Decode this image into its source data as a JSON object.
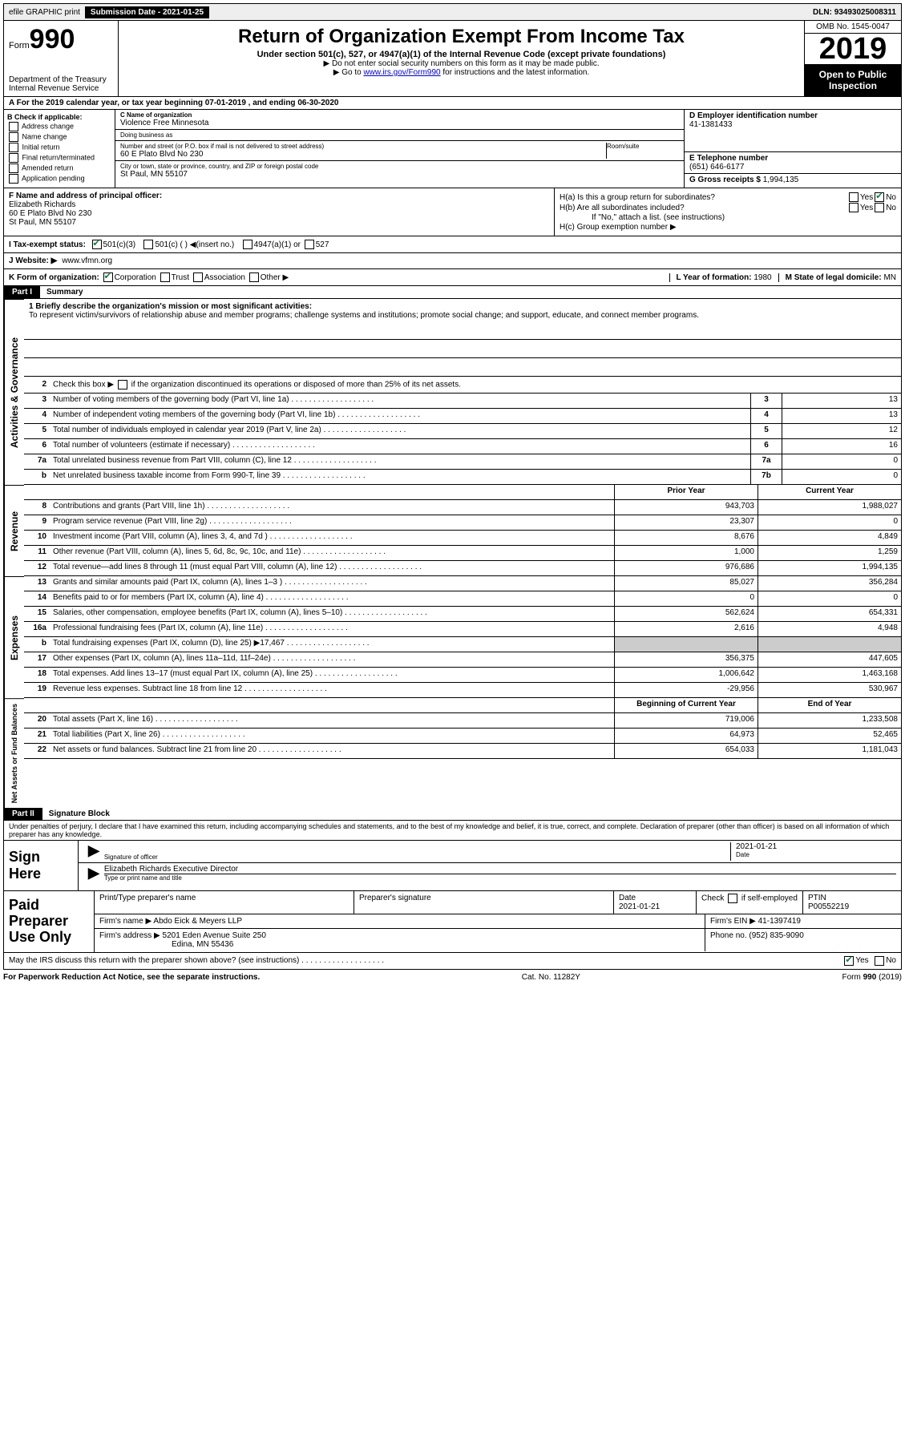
{
  "topbar": {
    "efile": "efile GRAPHIC print",
    "submission_label": "Submission Date - ",
    "submission_date": "2021-01-25",
    "dln_label": "DLN: ",
    "dln": "93493025008311"
  },
  "header": {
    "form_word": "Form",
    "form_num": "990",
    "dept1": "Department of the Treasury",
    "dept2": "Internal Revenue Service",
    "title": "Return of Organization Exempt From Income Tax",
    "sub": "Under section 501(c), 527, or 4947(a)(1) of the Internal Revenue Code (except private foundations)",
    "note1": "Do not enter social security numbers on this form as it may be made public.",
    "note2_pre": "Go to ",
    "note2_link": "www.irs.gov/Form990",
    "note2_post": " for instructions and the latest information.",
    "omb": "OMB No. 1545-0047",
    "year": "2019",
    "open": "Open to Public Inspection"
  },
  "row_a": "A   For the 2019 calendar year, or tax year beginning 07-01-2019    , and ending 06-30-2020",
  "b": {
    "label": "B Check if applicable:",
    "opts": [
      "Address change",
      "Name change",
      "Initial return",
      "Final return/terminated",
      "Amended return",
      "Application pending"
    ]
  },
  "c": {
    "name_label": "C Name of organization",
    "name": "Violence Free Minnesota",
    "dba_label": "Doing business as",
    "dba": "",
    "addr_label": "Number and street (or P.O. box if mail is not delivered to street address)",
    "room_label": "Room/suite",
    "addr": "60 E Plato Blvd No 230",
    "city_label": "City or town, state or province, country, and ZIP or foreign postal code",
    "city": "St Paul, MN  55107"
  },
  "d": {
    "label": "D Employer identification number",
    "value": "41-1381433"
  },
  "e": {
    "label": "E Telephone number",
    "value": "(651) 646-6177"
  },
  "g": {
    "label": "G Gross receipts $ ",
    "value": "1,994,135"
  },
  "f": {
    "label": "F  Name and address of principal officer:",
    "name": "Elizabeth Richards",
    "addr1": "60 E Plato Blvd No 230",
    "addr2": "St Paul, MN  55107"
  },
  "h": {
    "a_label": "H(a)  Is this a group return for subordinates?",
    "b_label": "H(b)  Are all subordinates included?",
    "b_note": "If \"No,\" attach a list. (see instructions)",
    "c_label": "H(c)  Group exemption number ▶",
    "yes": "Yes",
    "no": "No"
  },
  "tax_status": {
    "i_label": "I    Tax-exempt status:",
    "opt1": "501(c)(3)",
    "opt2": "501(c) (  ) ◀(insert no.)",
    "opt3": "4947(a)(1) or",
    "opt4": "527"
  },
  "j": {
    "label": "J    Website: ▶",
    "value": "www.vfmn.org"
  },
  "k": {
    "label": "K Form of organization:",
    "opts": [
      "Corporation",
      "Trust",
      "Association",
      "Other ▶"
    ]
  },
  "l": {
    "label": "L Year of formation: ",
    "value": "1980"
  },
  "m": {
    "label": "M State of legal domicile: ",
    "value": "MN"
  },
  "part1": {
    "part": "Part I",
    "title": "Summary"
  },
  "summary": {
    "line1_label": "1   Briefly describe the organization's mission or most significant activities:",
    "line1_text": "To represent victim/survivors of relationship abuse and member programs; challenge systems and institutions; promote social change; and support, educate, and connect member programs.",
    "line2": "Check this box ▶        if the organization discontinued its operations or disposed of more than 25% of its net assets.",
    "rows_gov": [
      {
        "n": "3",
        "d": "Number of voting members of the governing body (Part VI, line 1a)",
        "box": "3",
        "v": "13"
      },
      {
        "n": "4",
        "d": "Number of independent voting members of the governing body (Part VI, line 1b)",
        "box": "4",
        "v": "13"
      },
      {
        "n": "5",
        "d": "Total number of individuals employed in calendar year 2019 (Part V, line 2a)",
        "box": "5",
        "v": "12"
      },
      {
        "n": "6",
        "d": "Total number of volunteers (estimate if necessary)",
        "box": "6",
        "v": "16"
      },
      {
        "n": "7a",
        "d": "Total unrelated business revenue from Part VIII, column (C), line 12",
        "box": "7a",
        "v": "0"
      },
      {
        "n": "b",
        "d": "Net unrelated business taxable income from Form 990-T, line 39",
        "box": "7b",
        "v": "0"
      }
    ],
    "prior_hdr": "Prior Year",
    "curr_hdr": "Current Year",
    "rows_rev": [
      {
        "n": "8",
        "d": "Contributions and grants (Part VIII, line 1h)",
        "p": "943,703",
        "c": "1,988,027"
      },
      {
        "n": "9",
        "d": "Program service revenue (Part VIII, line 2g)",
        "p": "23,307",
        "c": "0"
      },
      {
        "n": "10",
        "d": "Investment income (Part VIII, column (A), lines 3, 4, and 7d )",
        "p": "8,676",
        "c": "4,849"
      },
      {
        "n": "11",
        "d": "Other revenue (Part VIII, column (A), lines 5, 6d, 8c, 9c, 10c, and 11e)",
        "p": "1,000",
        "c": "1,259"
      },
      {
        "n": "12",
        "d": "Total revenue—add lines 8 through 11 (must equal Part VIII, column (A), line 12)",
        "p": "976,686",
        "c": "1,994,135"
      }
    ],
    "rows_exp": [
      {
        "n": "13",
        "d": "Grants and similar amounts paid (Part IX, column (A), lines 1–3 )",
        "p": "85,027",
        "c": "356,284"
      },
      {
        "n": "14",
        "d": "Benefits paid to or for members (Part IX, column (A), line 4)",
        "p": "0",
        "c": "0"
      },
      {
        "n": "15",
        "d": "Salaries, other compensation, employee benefits (Part IX, column (A), lines 5–10)",
        "p": "562,624",
        "c": "654,331"
      },
      {
        "n": "16a",
        "d": "Professional fundraising fees (Part IX, column (A), line 11e)",
        "p": "2,616",
        "c": "4,948"
      },
      {
        "n": "b",
        "d": "Total fundraising expenses (Part IX, column (D), line 25) ▶17,467",
        "p": "",
        "c": "",
        "grey": true
      },
      {
        "n": "17",
        "d": "Other expenses (Part IX, column (A), lines 11a–11d, 11f–24e)",
        "p": "356,375",
        "c": "447,605"
      },
      {
        "n": "18",
        "d": "Total expenses. Add lines 13–17 (must equal Part IX, column (A), line 25)",
        "p": "1,006,642",
        "c": "1,463,168"
      },
      {
        "n": "19",
        "d": "Revenue less expenses. Subtract line 18 from line 12",
        "p": "-29,956",
        "c": "530,967"
      }
    ],
    "bcy_hdr": "Beginning of Current Year",
    "eoy_hdr": "End of Year",
    "rows_net": [
      {
        "n": "20",
        "d": "Total assets (Part X, line 16)",
        "p": "719,006",
        "c": "1,233,508"
      },
      {
        "n": "21",
        "d": "Total liabilities (Part X, line 26)",
        "p": "64,973",
        "c": "52,465"
      },
      {
        "n": "22",
        "d": "Net assets or fund balances. Subtract line 21 from line 20",
        "p": "654,033",
        "c": "1,181,043"
      }
    ]
  },
  "vtabs": {
    "gov": "Activities & Governance",
    "rev": "Revenue",
    "exp": "Expenses",
    "net": "Net Assets or Fund Balances"
  },
  "part2": {
    "part": "Part II",
    "title": "Signature Block"
  },
  "perjury": "Under penalties of perjury, I declare that I have examined this return, including accompanying schedules and statements, and to the best of my knowledge and belief, it is true, correct, and complete. Declaration of preparer (other than officer) is based on all information of which preparer has any knowledge.",
  "sign": {
    "here": "Sign Here",
    "sig_officer": "Signature of officer",
    "date": "Date",
    "date_val": "2021-01-21",
    "name": "Elizabeth Richards  Executive Director",
    "name_label": "Type or print name and title"
  },
  "paid": {
    "title": "Paid Preparer Use Only",
    "h1": "Print/Type preparer's name",
    "h2": "Preparer's signature",
    "h3": "Date",
    "h3v": "2021-01-21",
    "h4": "Check        if self-employed",
    "h5": "PTIN",
    "h5v": "P00552219",
    "firm_name_l": "Firm's name      ▶",
    "firm_name": "Abdo Eick & Meyers LLP",
    "firm_ein_l": "Firm's EIN ▶",
    "firm_ein": "41-1397419",
    "firm_addr_l": "Firm's address ▶",
    "firm_addr1": "5201 Eden Avenue Suite 250",
    "firm_addr2": "Edina, MN  55436",
    "phone_l": "Phone no. ",
    "phone": "(952) 835-9090"
  },
  "discuss": "May the IRS discuss this return with the preparer shown above? (see instructions)",
  "footer": {
    "left": "For Paperwork Reduction Act Notice, see the separate instructions.",
    "mid": "Cat. No. 11282Y",
    "right": "Form 990 (2019)"
  },
  "colors": {
    "link": "#0000cc",
    "check": "#0a7a3a"
  }
}
